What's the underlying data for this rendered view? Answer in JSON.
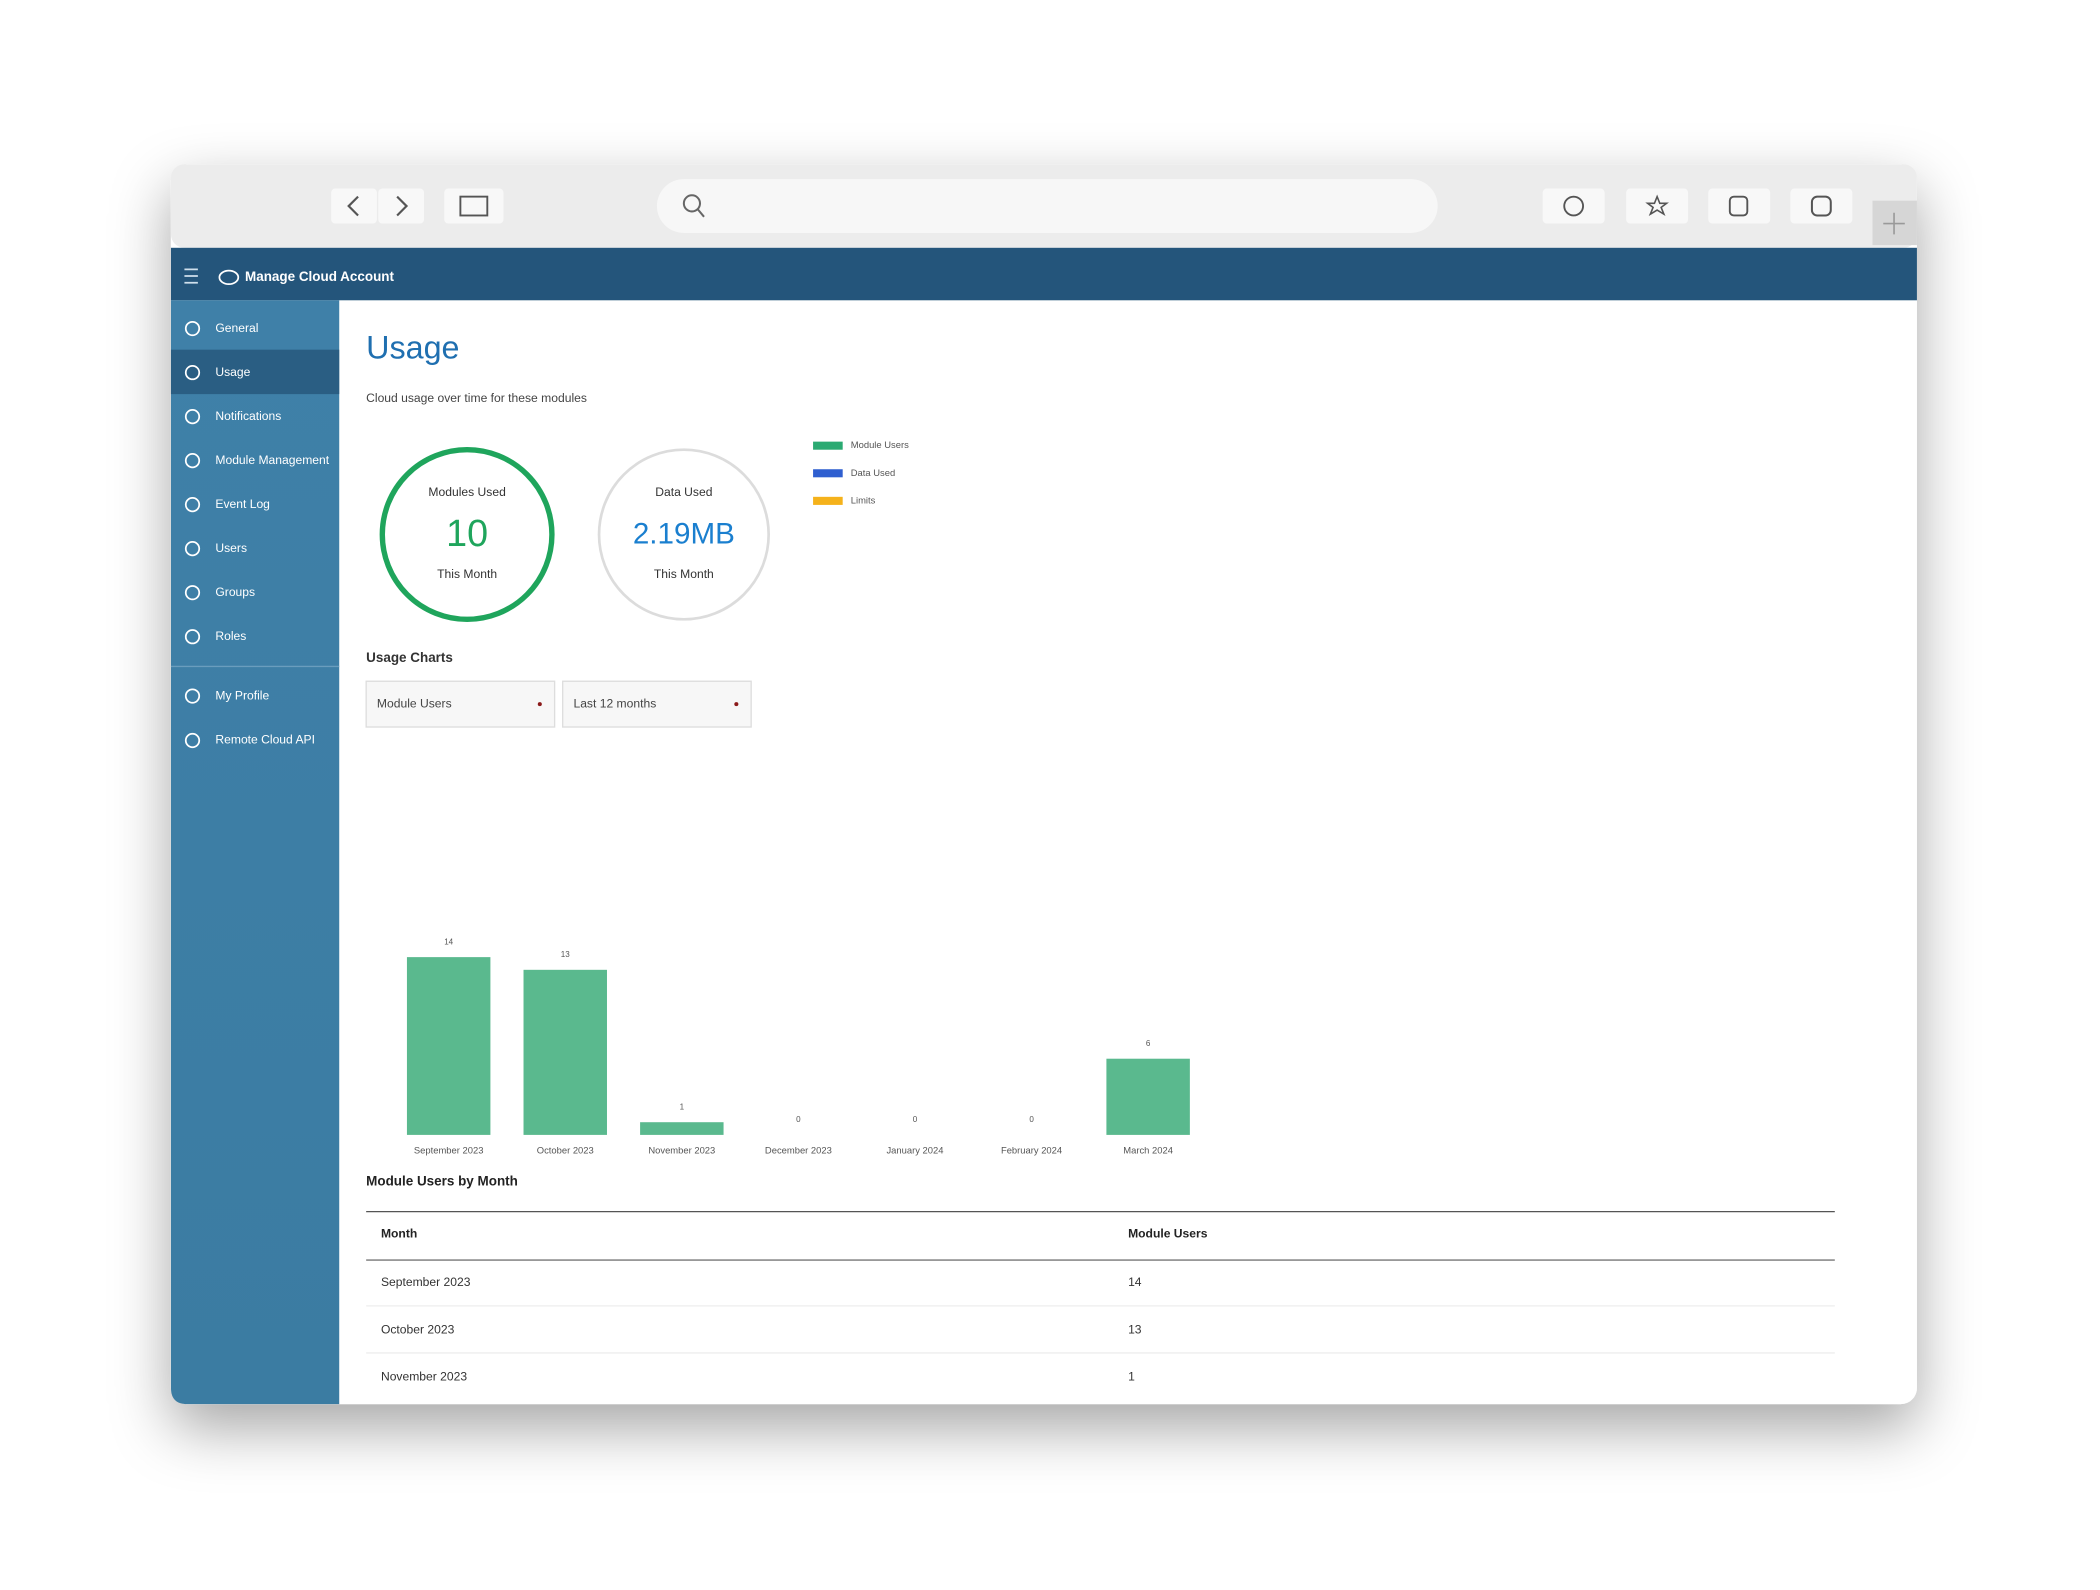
{
  "header": {
    "title": "Manage Cloud Account"
  },
  "sidebar": {
    "items": [
      "General",
      "Usage",
      "Notifications",
      "Module Management",
      "Event Log",
      "Users",
      "Groups",
      "Roles"
    ],
    "bottom_items": [
      "My Profile",
      "Remote Cloud API"
    ]
  },
  "page": {
    "title": "Usage",
    "subtitle": "Cloud usage over time for these modules"
  },
  "gauges": [
    {
      "label": "Modules Used",
      "value": "10",
      "caption": "This Month",
      "color": "#1fa55c"
    },
    {
      "label": "Data Used",
      "value": "2.19MB",
      "caption": "This Month",
      "color": "#1a7fcf"
    }
  ],
  "legend": [
    {
      "name": "Module Users",
      "color": "#2baa72"
    },
    {
      "name": "Data Used",
      "color": "#2f5fd0"
    },
    {
      "name": "Limits",
      "color": "#f5b21b"
    }
  ],
  "controls": {
    "title": "Usage Charts",
    "selects": [
      "Module Users",
      "Last 12 months"
    ]
  },
  "chart_data": {
    "type": "bar",
    "categories": [
      "September 2023",
      "October 2023",
      "November 2023",
      "December 2023",
      "January 2024",
      "February 2024",
      "March 2024"
    ],
    "values": [
      14,
      13,
      1,
      0,
      0,
      0,
      6
    ],
    "color": "#5ab98e",
    "ylim": [
      0,
      30
    ]
  },
  "table": {
    "title": "Module Users by Month",
    "columns": [
      "Month",
      "Module Users"
    ],
    "rows": [
      [
        "September 2023",
        14
      ],
      [
        "October 2023",
        13
      ],
      [
        "November 2023",
        1
      ]
    ]
  }
}
